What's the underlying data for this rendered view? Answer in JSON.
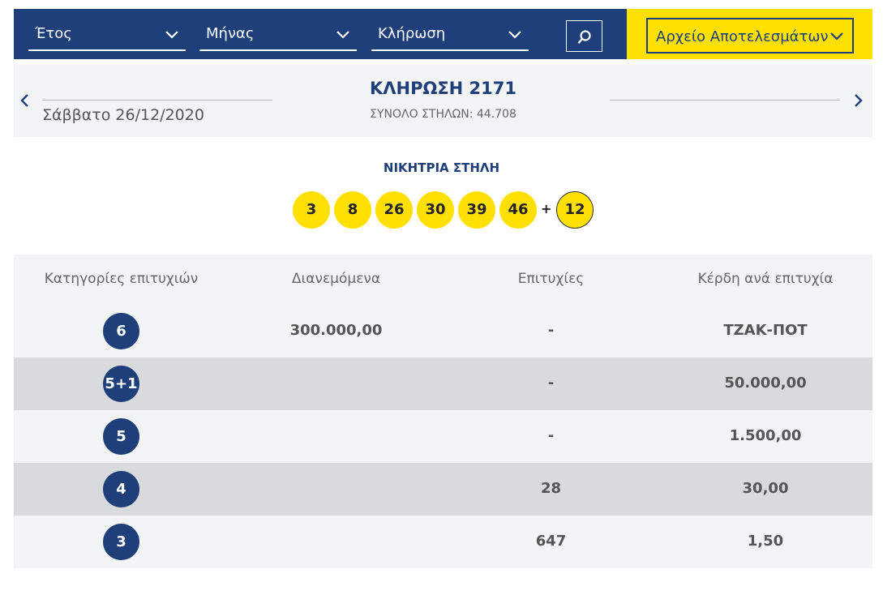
{
  "filters": {
    "year_label": "Έτος",
    "month_label": "Μήνας",
    "draw_label": "Κλήρωση",
    "archive_label": "Αρχείο Αποτελεσμάτων"
  },
  "draw": {
    "title": "ΚΛΗΡΩΣΗ 2171",
    "date": "Σάββατο 26/12/2020",
    "total_columns": "ΣΥΝΟΛΟ ΣΤΗΛΩΝ: 44.708"
  },
  "winning": {
    "title": "ΝΙΚΗΤΡΙΑ ΣΤΗΛΗ",
    "numbers": [
      "3",
      "8",
      "26",
      "30",
      "39",
      "46"
    ],
    "plus": "+",
    "bonus": "12"
  },
  "table": {
    "headers": [
      "Κατηγορίες επιτυχιών",
      "Διανεμόμενα",
      "Επιτυχίες",
      "Κέρδη ανά επιτυχία"
    ],
    "rows": [
      {
        "category": "6",
        "distributed": "300.000,00",
        "winners": "-",
        "prize": "ΤΖΑΚ-ΠΟΤ"
      },
      {
        "category": "5+1",
        "distributed": "",
        "winners": "-",
        "prize": "50.000,00"
      },
      {
        "category": "5",
        "distributed": "",
        "winners": "-",
        "prize": "1.500,00"
      },
      {
        "category": "4",
        "distributed": "",
        "winners": "28",
        "prize": "30,00"
      },
      {
        "category": "3",
        "distributed": "",
        "winners": "647",
        "prize": "1,50"
      }
    ]
  },
  "colors": {
    "navy": "#1e3f7a",
    "yellow": "#ffe000"
  },
  "icons": {
    "search": "search-icon",
    "dropdown": "chevron-down-icon",
    "prev": "chevron-left-icon",
    "next": "chevron-right-icon"
  }
}
